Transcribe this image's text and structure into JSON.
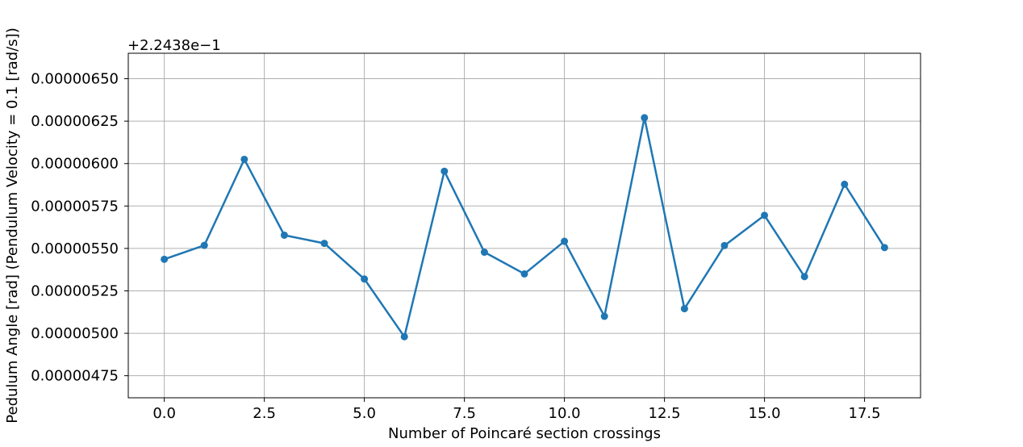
{
  "chart_data": {
    "type": "line",
    "xlabel": "Number of Poincaré section crossings",
    "ylabel": "Pedulum Angle [rad] (Pendulum Velocity = 0.1 [rad/s])",
    "y_offset_label": "+2.2438e−1",
    "xlim": [
      -0.9,
      18.9
    ],
    "ylim": [
      4.62e-06,
      6.65e-06
    ],
    "x_ticks": [
      0.0,
      2.5,
      5.0,
      7.5,
      10.0,
      12.5,
      15.0,
      17.5
    ],
    "x_tick_labels": [
      "0.0",
      "2.5",
      "5.0",
      "7.5",
      "10.0",
      "12.5",
      "15.0",
      "17.5"
    ],
    "y_ticks": [
      4.75e-06,
      5e-06,
      5.25e-06,
      5.5e-06,
      5.75e-06,
      6e-06,
      6.25e-06,
      6.5e-06
    ],
    "y_tick_labels": [
      "0.00000475",
      "0.00000500",
      "0.00000525",
      "0.00000550",
      "0.00000575",
      "0.00000600",
      "0.00000625",
      "0.00000650"
    ],
    "grid": true,
    "series": [
      {
        "color": "#1f77b4",
        "marker": "circle",
        "x": [
          0,
          1,
          2,
          3,
          4,
          5,
          6,
          7,
          8,
          9,
          10,
          11,
          12,
          13,
          14,
          15,
          16,
          17,
          18
        ],
        "y": [
          5.436e-06,
          5.518e-06,
          6.025e-06,
          5.578e-06,
          5.53e-06,
          5.32e-06,
          4.98e-06,
          5.955e-06,
          5.478e-06,
          5.35e-06,
          5.542e-06,
          5.1e-06,
          6.27e-06,
          5.145e-06,
          5.517e-06,
          5.695e-06,
          5.334e-06,
          5.878e-06,
          5.505e-06
        ]
      }
    ]
  }
}
